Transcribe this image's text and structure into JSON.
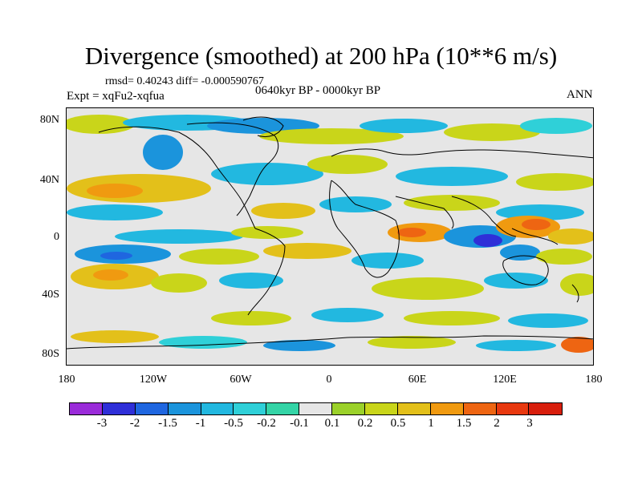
{
  "title": "Divergence (smoothed) at 200 hPa (10**6 m/s)",
  "stats": "rmsd= 0.40243 diff= -0.000590767",
  "experiment": "Expt = xqFu2-xqfua",
  "period": "0640kyr BP - 0000kyr BP",
  "season": "ANN",
  "map": {
    "lat_labels": [
      "80N",
      "40N",
      "0",
      "40S",
      "80S"
    ],
    "lon_labels": [
      "180",
      "120W",
      "60W",
      "0",
      "60E",
      "120E",
      "180"
    ]
  },
  "colorbar": {
    "labels": [
      "-3",
      "-2",
      "-1.5",
      "-1",
      "-0.5",
      "-0.2",
      "-0.1",
      "0.1",
      "0.2",
      "0.5",
      "1",
      "1.5",
      "2",
      "3"
    ],
    "colors": [
      "#9a2bd9",
      "#2f2fd8",
      "#1f66e0",
      "#1b94dc",
      "#22b8e0",
      "#2fd0d8",
      "#34d4a6",
      "#e6e6e6",
      "#9bd12a",
      "#c9d51a",
      "#e3c01a",
      "#f09a10",
      "#ee6512",
      "#e8380f",
      "#d81e0c"
    ]
  }
}
